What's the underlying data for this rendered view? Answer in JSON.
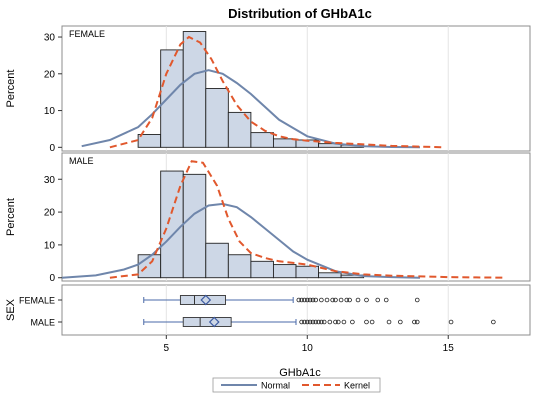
{
  "chart_data": {
    "type": "histogram",
    "title": "Distribution of GHbA1c",
    "xlabel": "GHbA1c",
    "xlim": [
      1.3,
      17.9
    ],
    "x_ticks": [
      5,
      10,
      15
    ],
    "bin_edges": [
      4.0,
      4.8,
      5.6,
      6.4,
      7.2,
      8.0,
      8.8,
      9.6,
      10.4,
      11.2,
      12.0
    ],
    "panels": [
      {
        "label": "FEMALE",
        "ylabel": "Percent",
        "ylim": [
          -1,
          33
        ],
        "y_ticks": [
          0,
          10,
          20,
          30
        ],
        "bars": [
          3.5,
          26.5,
          31.5,
          16,
          9.5,
          4,
          2.3,
          2,
          1,
          0.6
        ],
        "normal_curve": {
          "x": [
            2.0,
            3.0,
            4.0,
            4.5,
            5.0,
            5.5,
            6.0,
            6.5,
            7.0,
            7.5,
            8.0,
            8.5,
            9.0,
            10.0,
            11.0,
            12.0,
            13.0,
            14.0
          ],
          "y": [
            0.3,
            2,
            5.5,
            9,
            13,
            17,
            20,
            21,
            20,
            17.5,
            14.5,
            11,
            7.5,
            3,
            1,
            0.3,
            0.1,
            0
          ]
        },
        "kernel_curve": {
          "x": [
            3.0,
            4.0,
            4.5,
            5.0,
            5.5,
            5.8,
            6.2,
            6.6,
            7.0,
            7.5,
            8.0,
            8.5,
            9.0,
            9.5,
            10.0,
            11.0,
            12.0,
            13.0,
            14.0,
            14.8
          ],
          "y": [
            0,
            2,
            8,
            20,
            28,
            30,
            28.5,
            24,
            18,
            11.5,
            7,
            4.5,
            3,
            2.2,
            1.8,
            1.2,
            0.8,
            0.4,
            0.2,
            0
          ]
        }
      },
      {
        "label": "MALE",
        "ylabel": "Percent",
        "ylim": [
          -1,
          38
        ],
        "y_ticks": [
          0,
          10,
          20,
          30
        ],
        "bars": [
          7,
          32.5,
          31.5,
          10.5,
          7,
          5,
          4,
          3.5,
          1.5,
          0.8
        ],
        "normal_curve": {
          "x": [
            1.3,
            2.5,
            3.5,
            4.0,
            4.5,
            5.0,
            5.5,
            6.0,
            6.5,
            7.0,
            7.5,
            8.0,
            8.5,
            9.0,
            9.5,
            10.0,
            11.0,
            12.0,
            13.0,
            14.0
          ],
          "y": [
            0,
            0.7,
            2.5,
            4,
            7,
            11,
            15.5,
            19.5,
            22,
            22.5,
            21.5,
            18.5,
            15,
            11.5,
            8,
            5.5,
            2,
            0.5,
            0.2,
            0
          ]
        },
        "kernel_curve": {
          "x": [
            3.0,
            4.0,
            4.5,
            5.0,
            5.5,
            5.9,
            6.3,
            6.8,
            7.2,
            7.6,
            8.0,
            8.5,
            9.0,
            9.5,
            10.0,
            10.5,
            11.0,
            12.0,
            13.0,
            14.0,
            15.0,
            16.0,
            17.0
          ],
          "y": [
            0,
            1,
            5,
            15,
            28,
            35.5,
            35,
            28,
            18,
            11,
            7.5,
            6,
            5,
            4.5,
            4,
            3,
            2,
            1,
            0.6,
            0.4,
            0.2,
            0.1,
            0
          ]
        }
      }
    ],
    "boxplot": {
      "ylabel": "SEX",
      "groups": [
        {
          "label": "FEMALE",
          "whisker_low": 4.2,
          "q1": 5.5,
          "median": 6.0,
          "mean": 6.4,
          "q3": 7.1,
          "whisker_high": 9.5,
          "outliers": [
            9.7,
            9.8,
            9.9,
            10.0,
            10.1,
            10.2,
            10.3,
            10.5,
            10.7,
            10.9,
            11.0,
            11.2,
            11.4,
            11.5,
            11.8,
            12.1,
            12.5,
            12.8,
            13.9
          ]
        },
        {
          "label": "MALE",
          "whisker_low": 4.2,
          "q1": 5.6,
          "median": 6.2,
          "mean": 6.7,
          "q3": 7.3,
          "whisker_high": 9.6,
          "outliers": [
            9.8,
            9.9,
            10.0,
            10.1,
            10.2,
            10.3,
            10.4,
            10.5,
            10.6,
            10.8,
            11.0,
            11.1,
            11.3,
            11.6,
            12.1,
            12.3,
            12.9,
            13.3,
            13.8,
            13.9,
            15.1,
            16.6
          ]
        }
      ]
    },
    "legend": {
      "position": "bottom",
      "entries": [
        {
          "name": "Normal",
          "color": "#6f86ab",
          "style": "solid"
        },
        {
          "name": "Kernel",
          "color": "#e1582d",
          "style": "dashed"
        }
      ]
    },
    "colors": {
      "bar_fill": "#cdd7e6",
      "bar_stroke": "#222222",
      "box_fill": "#cdd7e6",
      "box_stroke": "#333333",
      "mean_marker": "#3c5aa0",
      "whisker": "#4a6aa8",
      "grid": "#e4e4e4"
    },
    "grid": true
  }
}
